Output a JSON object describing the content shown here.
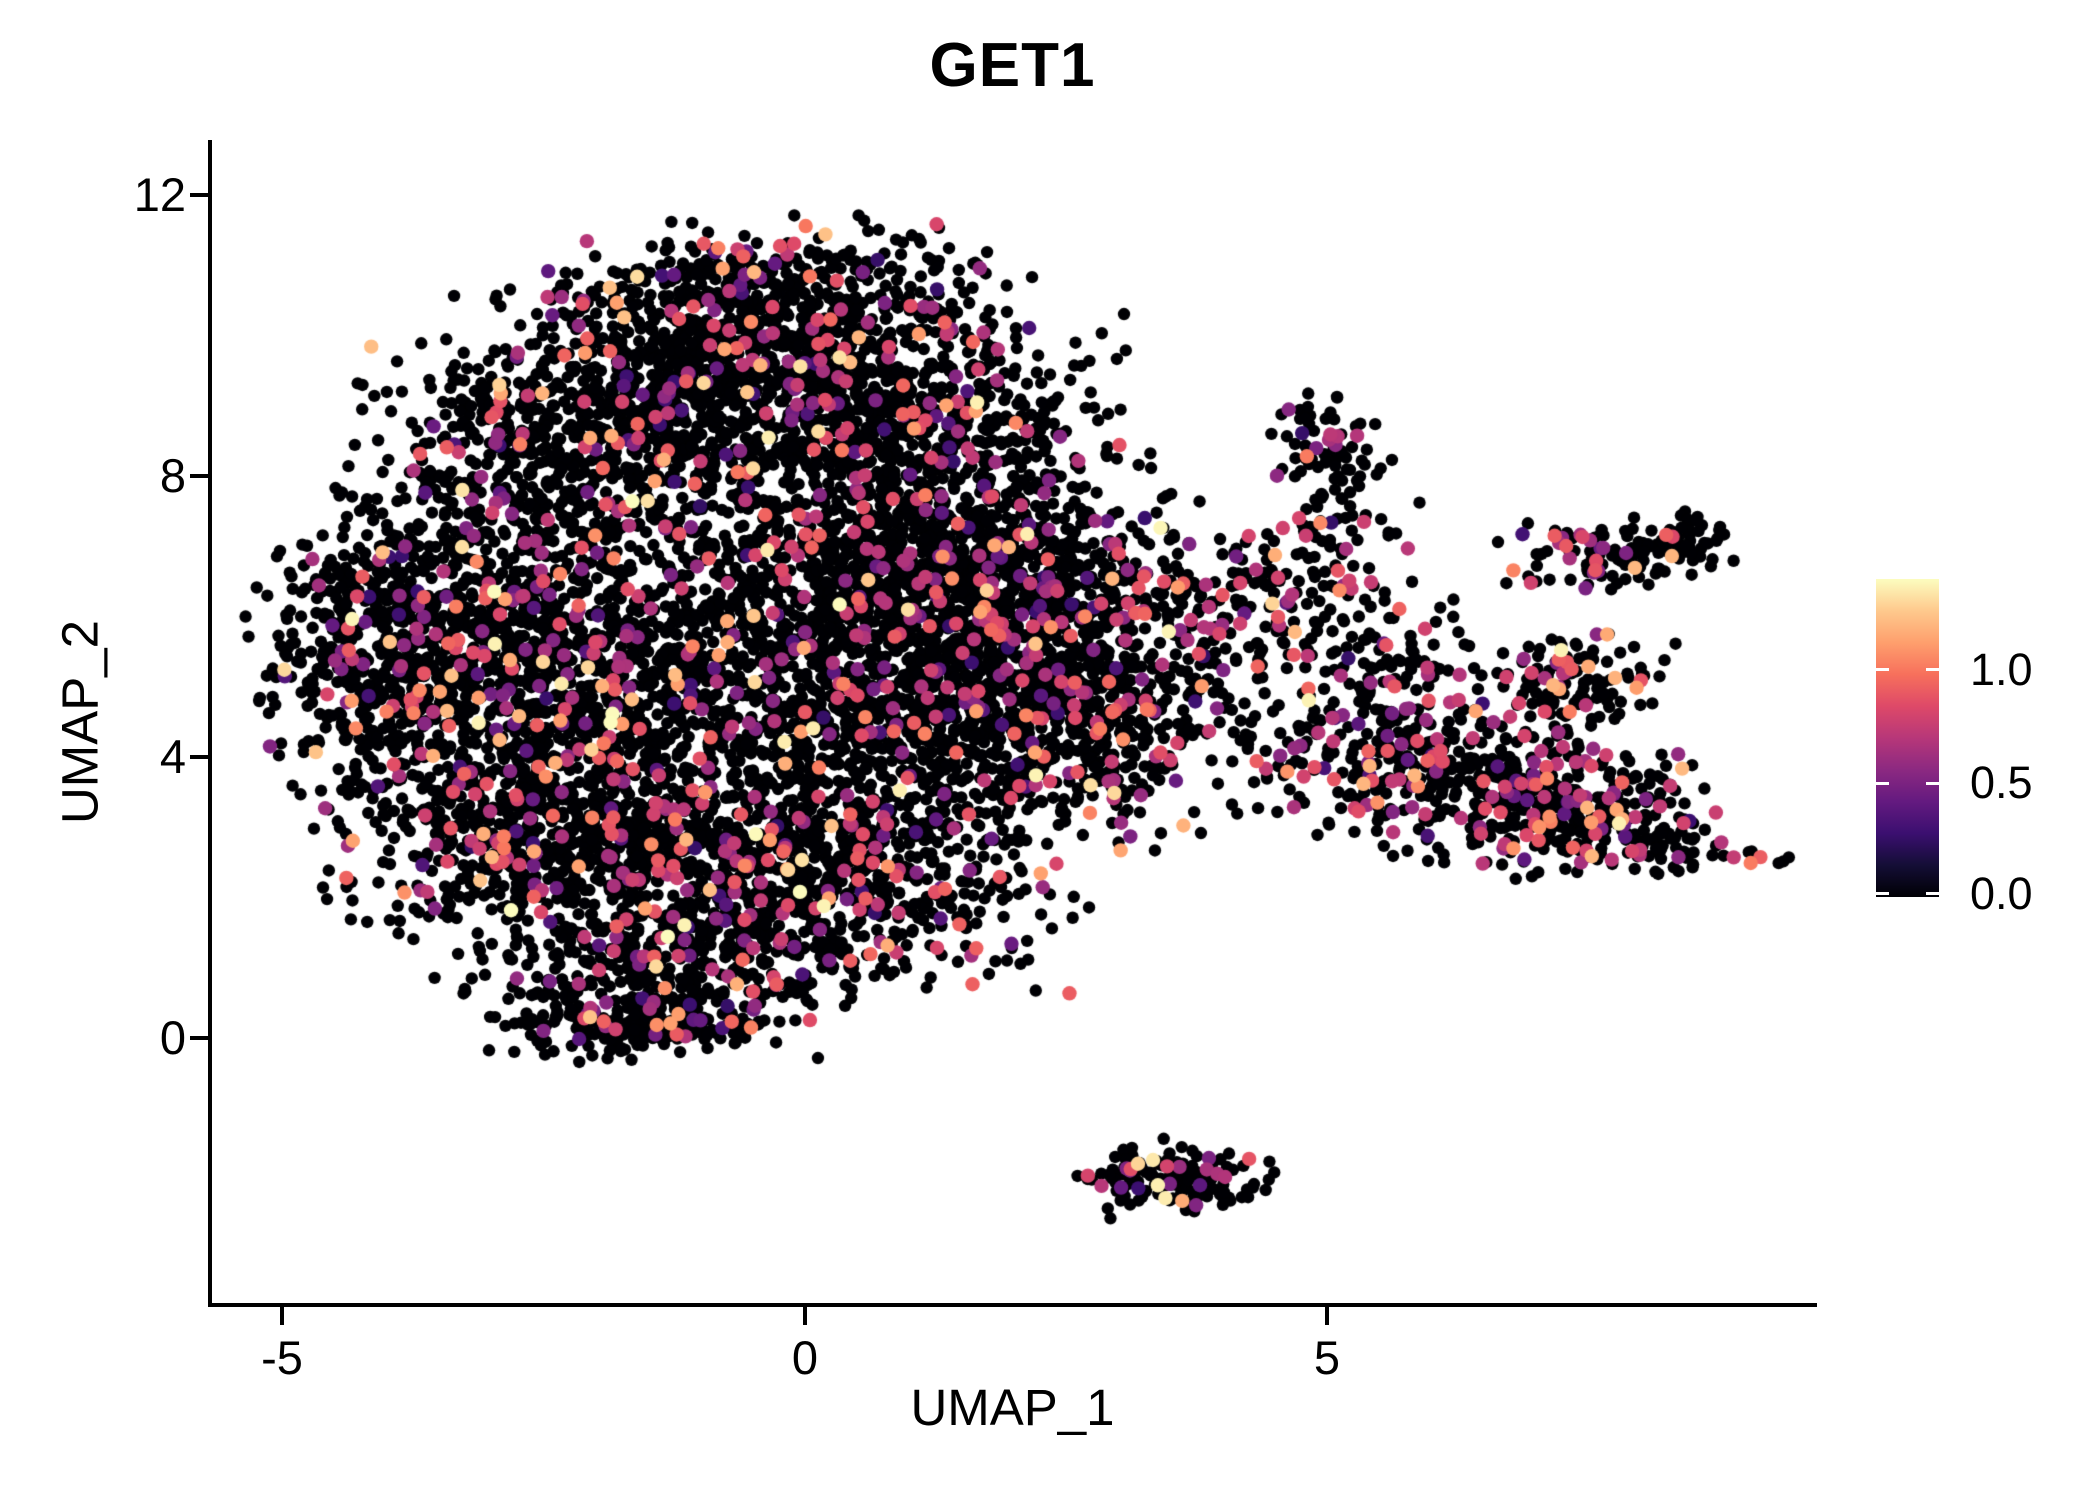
{
  "chart_data": {
    "type": "scatter",
    "title": "GET1",
    "xlabel": "UMAP_1",
    "ylabel": "UMAP_2",
    "x_ticks": [
      {
        "value": -5,
        "label": "-5"
      },
      {
        "value": 0,
        "label": "0"
      },
      {
        "value": 5,
        "label": "5"
      }
    ],
    "y_ticks": [
      {
        "value": 0,
        "label": "0"
      },
      {
        "value": 4,
        "label": "4"
      },
      {
        "value": 8,
        "label": "8"
      },
      {
        "value": 12,
        "label": "12"
      }
    ],
    "xlim": [
      -5.7,
      9.7
    ],
    "ylim": [
      -3.8,
      12.8
    ],
    "grid": false,
    "background": "#ffffff",
    "axis_color": "#000000",
    "legend_position": "right-colorbar",
    "colorbar": {
      "min": 0.0,
      "max": 1.4,
      "ticks": [
        {
          "value": 0.0,
          "label": "0.0"
        },
        {
          "value": 0.5,
          "label": "0.5"
        },
        {
          "value": 1.0,
          "label": "1.0"
        }
      ]
    },
    "colormap": {
      "name": "magma",
      "stops": [
        [
          0.0,
          "#000004"
        ],
        [
          0.1,
          "#140e36"
        ],
        [
          0.2,
          "#3b0f70"
        ],
        [
          0.3,
          "#641a80"
        ],
        [
          0.4,
          "#8c2981"
        ],
        [
          0.5,
          "#b73779"
        ],
        [
          0.6,
          "#de4968"
        ],
        [
          0.7,
          "#f7705c"
        ],
        [
          0.8,
          "#fe9f6d"
        ],
        [
          0.9,
          "#fec98d"
        ],
        [
          1.0,
          "#fcfdbf"
        ]
      ]
    },
    "seed": 20240613,
    "point_radius": {
      "zero": 6.2,
      "expressed": 7.2
    },
    "expression_profiles": {
      "low": {
        "zero_fraction": 0.885,
        "bands": [
          {
            "p": 0.02,
            "lo": 0.25,
            "hi": 0.5
          },
          {
            "p": 0.075,
            "lo": 0.5,
            "hi": 0.95
          },
          {
            "p": 0.015,
            "lo": 1.0,
            "hi": 1.25
          },
          {
            "p": 0.005,
            "lo": 1.28,
            "hi": 1.4
          }
        ]
      },
      "rich": {
        "zero_fraction": 0.8,
        "bands": [
          {
            "p": 0.03,
            "lo": 0.25,
            "hi": 0.5
          },
          {
            "p": 0.14,
            "lo": 0.5,
            "hi": 0.95
          },
          {
            "p": 0.025,
            "lo": 1.0,
            "hi": 1.25
          },
          {
            "p": 0.005,
            "lo": 1.28,
            "hi": 1.4
          }
        ]
      }
    },
    "clusters": [
      {
        "cx": -0.6,
        "cy": 9.7,
        "sx": 1.2,
        "sy": 0.7,
        "n": 800,
        "profile": "low"
      },
      {
        "cx": -2.3,
        "cy": 8.3,
        "sx": 0.95,
        "sy": 0.75,
        "n": 620,
        "profile": "low"
      },
      {
        "cx": 0.7,
        "cy": 8.7,
        "sx": 1.05,
        "sy": 0.78,
        "n": 650,
        "profile": "low"
      },
      {
        "cx": -3.4,
        "cy": 5.7,
        "sx": 0.85,
        "sy": 1.05,
        "n": 700,
        "profile": "low"
      },
      {
        "cx": -1.6,
        "cy": 5.2,
        "sx": 1.25,
        "sy": 1.15,
        "n": 800,
        "profile": "low"
      },
      {
        "cx": 0.3,
        "cy": 5.8,
        "sx": 1.2,
        "sy": 1.0,
        "n": 750,
        "profile": "low"
      },
      {
        "cx": 1.7,
        "cy": 4.9,
        "sx": 0.95,
        "sy": 0.95,
        "n": 600,
        "profile": "low"
      },
      {
        "cx": -1.2,
        "cy": 2.7,
        "sx": 1.15,
        "sy": 0.95,
        "n": 750,
        "profile": "low"
      },
      {
        "cx": 0.5,
        "cy": 2.3,
        "sx": 1.0,
        "sy": 0.8,
        "n": 560,
        "profile": "low"
      },
      {
        "cx": -2.9,
        "cy": 3.1,
        "sx": 0.8,
        "sy": 0.85,
        "n": 470,
        "profile": "low"
      },
      {
        "cx": -1.4,
        "cy": 0.9,
        "sx": 0.85,
        "sy": 0.55,
        "n": 330,
        "profile": "low"
      },
      {
        "cx": -1.5,
        "cy": 0.2,
        "sx": 0.55,
        "sy": 0.18,
        "n": 170,
        "profile": "low"
      },
      {
        "cx": 2.5,
        "cy": 4.4,
        "sx": 0.75,
        "sy": 0.8,
        "n": 330,
        "profile": "low"
      },
      {
        "cx": 1.3,
        "cy": 7.2,
        "sx": 1.0,
        "sy": 0.8,
        "n": 470,
        "profile": "low"
      },
      {
        "cx": -4.2,
        "cy": 5.3,
        "sx": 0.45,
        "sy": 0.85,
        "n": 170,
        "profile": "low"
      },
      {
        "cx": 0.0,
        "cy": 10.8,
        "sx": 0.95,
        "sy": 0.45,
        "n": 230,
        "profile": "low"
      },
      {
        "cx": 2.0,
        "cy": 6.3,
        "sx": 0.8,
        "sy": 0.7,
        "n": 330,
        "profile": "low"
      },
      {
        "cx": 3.4,
        "cy": 5.9,
        "sx": 0.6,
        "sy": 0.9,
        "n": 130,
        "profile": "low"
      },
      {
        "cx": 4.2,
        "cy": 5.6,
        "sx": 0.45,
        "sy": 0.8,
        "n": 90,
        "profile": "rich"
      },
      {
        "cx": 4.8,
        "cy": 6.6,
        "sx": 0.55,
        "sy": 0.5,
        "n": 80,
        "profile": "rich"
      },
      {
        "cx": 5.15,
        "cy": 7.7,
        "sx": 0.25,
        "sy": 0.45,
        "n": 40,
        "profile": "rich"
      },
      {
        "cx": 5.0,
        "cy": 8.5,
        "sx": 0.28,
        "sy": 0.3,
        "n": 55,
        "profile": "rich"
      },
      {
        "cx": 7.65,
        "cy": 6.85,
        "sx": 0.45,
        "sy": 0.27,
        "n": 85,
        "profile": "rich"
      },
      {
        "cx": 8.35,
        "cy": 7.1,
        "sx": 0.28,
        "sy": 0.2,
        "n": 55,
        "profile": "rich"
      },
      {
        "cx": 5.6,
        "cy": 5.25,
        "sx": 0.45,
        "sy": 0.5,
        "n": 95,
        "profile": "rich"
      },
      {
        "cx": 7.4,
        "cy": 5.05,
        "sx": 0.45,
        "sy": 0.35,
        "n": 115,
        "profile": "rich"
      },
      {
        "cx": 6.2,
        "cy": 3.7,
        "sx": 0.75,
        "sy": 0.55,
        "n": 270,
        "profile": "rich"
      },
      {
        "cx": 7.4,
        "cy": 3.3,
        "sx": 0.6,
        "sy": 0.45,
        "n": 250,
        "profile": "rich"
      },
      {
        "cx": 5.0,
        "cy": 4.2,
        "sx": 0.55,
        "sy": 0.65,
        "n": 90,
        "profile": "rich"
      },
      {
        "cx": 8.3,
        "cy": 2.7,
        "sx": 0.3,
        "sy": 0.2,
        "n": 40,
        "profile": "rich"
      },
      {
        "cx": 9.15,
        "cy": 2.6,
        "sx": 0.17,
        "sy": 0.1,
        "n": 8,
        "profile": "rich"
      },
      {
        "cx": 3.55,
        "cy": -2.0,
        "sx": 0.42,
        "sy": 0.26,
        "n": 120,
        "profile": "low"
      },
      {
        "cx": 3.05,
        "cy": -1.95,
        "sx": 0.22,
        "sy": 0.12,
        "n": 25,
        "profile": "low"
      }
    ]
  }
}
